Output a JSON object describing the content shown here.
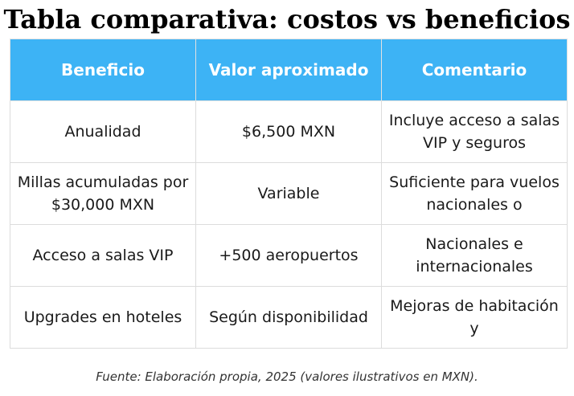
{
  "title": "Tabla comparativa: costos vs beneficios",
  "colors": {
    "header_background": "#3db3f5",
    "header_text": "#ffffff",
    "border": "#dcdcdc"
  },
  "table": {
    "headers": [
      "Beneficio",
      "Valor aproximado",
      "Comentario"
    ],
    "rows": [
      [
        "Anualidad",
        "$6,500 MXN",
        "Incluye acceso a salas VIP y seguros"
      ],
      [
        "Millas acumuladas por $30,000 MXN",
        "Variable",
        "Suficiente para vuelos nacionales o"
      ],
      [
        "Acceso a salas VIP",
        "+500 aeropuertos",
        "Nacionales e internacionales"
      ],
      [
        "Upgrades en hoteles",
        "Según disponibilidad",
        "Mejoras de habitación y"
      ]
    ]
  },
  "source": "Fuente: Elaboración propia, 2025 (valores ilustrativos en MXN)."
}
